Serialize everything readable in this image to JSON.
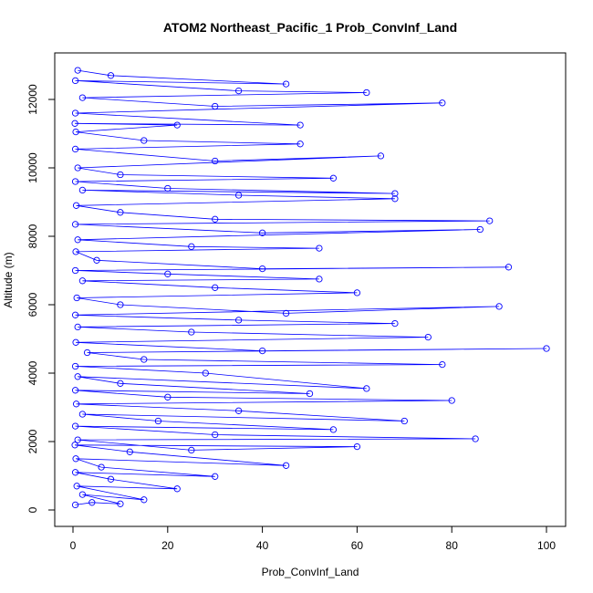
{
  "chart_data": {
    "type": "line",
    "title": "ATOM2 Northeast_Pacific_1 Prob_ConvInf_Land",
    "xlabel": "Prob_ConvInf_Land",
    "ylabel": "Altitude (m)",
    "xlim": [
      0,
      100
    ],
    "ylim": [
      0,
      12900
    ],
    "x_ticks": [
      0,
      20,
      40,
      60,
      80,
      100
    ],
    "y_ticks": [
      0,
      2000,
      4000,
      6000,
      8000,
      10000,
      12000
    ],
    "x_tick_labels": [
      "0",
      "20",
      "40",
      "60",
      "80",
      "100"
    ],
    "y_tick_labels": [
      "0",
      "2000",
      "4000",
      "6000",
      "8000",
      "10000",
      "12000"
    ],
    "grid": false,
    "legend": "none",
    "series_color": "#0000ff",
    "marker": "open-circle",
    "points": [
      [
        0.5,
        150
      ],
      [
        4,
        220
      ],
      [
        10,
        180
      ],
      [
        2,
        450
      ],
      [
        15,
        300
      ],
      [
        0.8,
        700
      ],
      [
        22,
        620
      ],
      [
        8,
        900
      ],
      [
        0.5,
        1100
      ],
      [
        30,
        980
      ],
      [
        6,
        1250
      ],
      [
        0.6,
        1500
      ],
      [
        45,
        1300
      ],
      [
        12,
        1700
      ],
      [
        0.4,
        1900
      ],
      [
        60,
        1850
      ],
      [
        25,
        1750
      ],
      [
        1,
        2050
      ],
      [
        85,
        2080
      ],
      [
        30,
        2200
      ],
      [
        0.5,
        2450
      ],
      [
        55,
        2350
      ],
      [
        18,
        2600
      ],
      [
        2,
        2800
      ],
      [
        70,
        2600
      ],
      [
        35,
        2900
      ],
      [
        0.7,
        3100
      ],
      [
        80,
        3200
      ],
      [
        20,
        3300
      ],
      [
        0.5,
        3500
      ],
      [
        50,
        3400
      ],
      [
        10,
        3700
      ],
      [
        1,
        3900
      ],
      [
        62,
        3550
      ],
      [
        28,
        4000
      ],
      [
        0.5,
        4200
      ],
      [
        78,
        4250
      ],
      [
        15,
        4400
      ],
      [
        3,
        4600
      ],
      [
        100,
        4720
      ],
      [
        40,
        4650
      ],
      [
        0.6,
        4900
      ],
      [
        75,
        5050
      ],
      [
        25,
        5200
      ],
      [
        1,
        5350
      ],
      [
        68,
        5450
      ],
      [
        35,
        5550
      ],
      [
        0.5,
        5700
      ],
      [
        90,
        5950
      ],
      [
        45,
        5750
      ],
      [
        10,
        6000
      ],
      [
        0.8,
        6200
      ],
      [
        60,
        6350
      ],
      [
        30,
        6500
      ],
      [
        2,
        6700
      ],
      [
        52,
        6750
      ],
      [
        20,
        6900
      ],
      [
        0.5,
        7000
      ],
      [
        92,
        7100
      ],
      [
        40,
        7050
      ],
      [
        5,
        7300
      ],
      [
        0.6,
        7550
      ],
      [
        52,
        7650
      ],
      [
        25,
        7700
      ],
      [
        1,
        7900
      ],
      [
        86,
        8200
      ],
      [
        40,
        8100
      ],
      [
        0.5,
        8350
      ],
      [
        88,
        8450
      ],
      [
        30,
        8500
      ],
      [
        10,
        8700
      ],
      [
        0.7,
        8900
      ],
      [
        68,
        9100
      ],
      [
        35,
        9200
      ],
      [
        2,
        9350
      ],
      [
        68,
        9250
      ],
      [
        20,
        9400
      ],
      [
        0.5,
        9600
      ],
      [
        55,
        9700
      ],
      [
        10,
        9800
      ],
      [
        1,
        10000
      ],
      [
        65,
        10350
      ],
      [
        30,
        10200
      ],
      [
        0.5,
        10550
      ],
      [
        48,
        10700
      ],
      [
        15,
        10800
      ],
      [
        0.6,
        11050
      ],
      [
        22,
        11250
      ],
      [
        0.4,
        11300
      ],
      [
        48,
        11250
      ],
      [
        0.5,
        11600
      ],
      [
        78,
        11900
      ],
      [
        30,
        11800
      ],
      [
        2,
        12050
      ],
      [
        62,
        12200
      ],
      [
        35,
        12250
      ],
      [
        0.5,
        12550
      ],
      [
        45,
        12450
      ],
      [
        8,
        12700
      ],
      [
        1,
        12850
      ]
    ]
  }
}
